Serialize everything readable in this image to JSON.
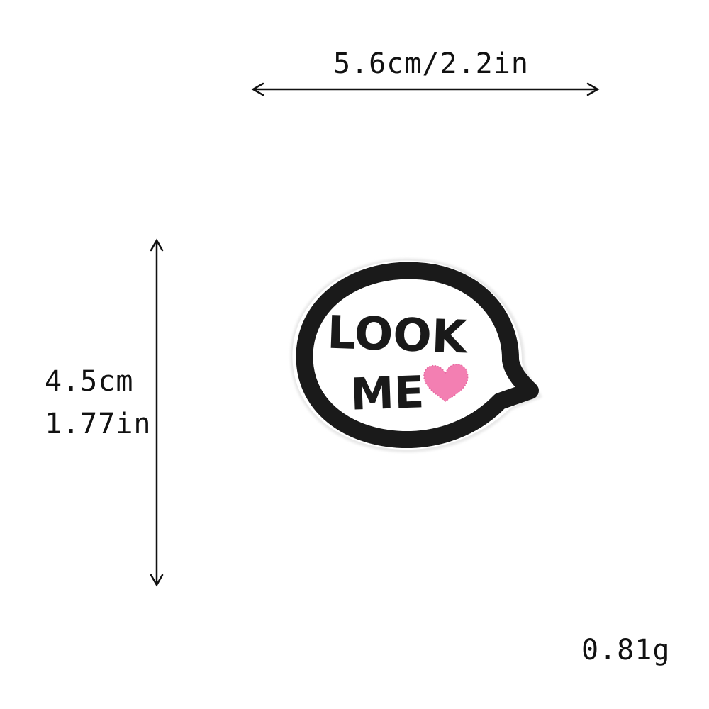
{
  "dimensions": {
    "width_label": "5.6cm/2.2in",
    "height_cm_label": "4.5cm",
    "height_in_label": "1.77in",
    "weight_label": "0.81g"
  },
  "patch": {
    "text_line1": "LOOK",
    "text_line2": "ME",
    "colors": {
      "outline": "#1a1a1a",
      "fill": "#ffffff",
      "heart": "#f37fb2",
      "text": "#1a1a1a"
    }
  }
}
